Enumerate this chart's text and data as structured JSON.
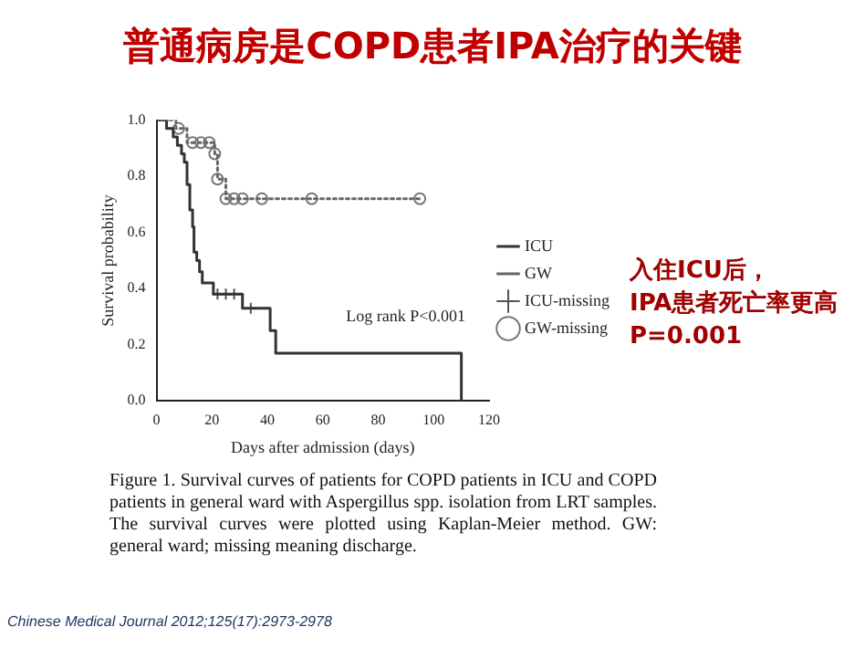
{
  "chart_data": {
    "type": "step",
    "title": "普通病房是COPD患者IPA治疗的关键",
    "xlabel": "Days after admission (days)",
    "ylabel": "Survival probability",
    "xlim": [
      0,
      120
    ],
    "xticks": [
      0,
      20,
      40,
      60,
      80,
      100,
      120
    ],
    "ylim": [
      0,
      1
    ],
    "yticks": [
      {
        "value": 0,
        "label": "0.0"
      },
      {
        "value": 0.2,
        "label": "0.2"
      },
      {
        "value": 0.4,
        "label": "0.4"
      },
      {
        "value": 0.6,
        "label": "0.6"
      },
      {
        "value": 0.8,
        "label": "0.8"
      },
      {
        "value": 1,
        "label": "1.0"
      }
    ],
    "grid": false,
    "legend": "right",
    "series": [
      {
        "name": "ICU",
        "color": "#333333",
        "line_style": "solid",
        "marker": "none",
        "x": [
          0,
          3.6,
          6,
          7.5,
          9,
          10,
          11,
          12,
          13,
          13.5,
          14.5,
          15.5,
          16.5,
          20.5,
          31,
          41,
          43,
          110
        ],
        "values": [
          1,
          0.97,
          0.94,
          0.91,
          0.88,
          0.85,
          0.77,
          0.68,
          0.62,
          0.53,
          0.5,
          0.46,
          0.42,
          0.38,
          0.33,
          0.25,
          0.17,
          0
        ]
      },
      {
        "name": "GW",
        "color": "#666666",
        "line_style": "dotted",
        "marker": "none",
        "x": [
          0,
          7,
          11,
          21,
          22,
          25,
          95
        ],
        "values": [
          1,
          0.97,
          0.92,
          0.88,
          0.79,
          0.72,
          0.72
        ]
      },
      {
        "name": "ICU-missing",
        "type": "scatter",
        "color": "#555555",
        "marker": "cross",
        "x": [
          22,
          25,
          28,
          34
        ],
        "values": [
          0.38,
          0.38,
          0.38,
          0.33
        ]
      },
      {
        "name": "GW-missing",
        "type": "scatter",
        "color": "#777777",
        "marker": "circle",
        "x": [
          8,
          13,
          16,
          19,
          21,
          22,
          25,
          28,
          31,
          38,
          56,
          95
        ],
        "values": [
          0.97,
          0.92,
          0.92,
          0.92,
          0.88,
          0.79,
          0.72,
          0.72,
          0.72,
          0.72,
          0.72,
          0.72
        ]
      }
    ],
    "annotations": [
      "Log rank P<0.001",
      "入住ICU后，\nIPA患者死亡率更高\nP=0.001",
      "Figure 1. Survival curves of patients for COPD patients in ICU and COPD patients in general ward with Aspergillus spp. isolation from LRT samples. The survival curves were plotted using Kaplan-Meier method. GW: general ward; missing meaning discharge.",
      "Chinese Medical Journal 2012;125(17):2973-2978"
    ]
  }
}
